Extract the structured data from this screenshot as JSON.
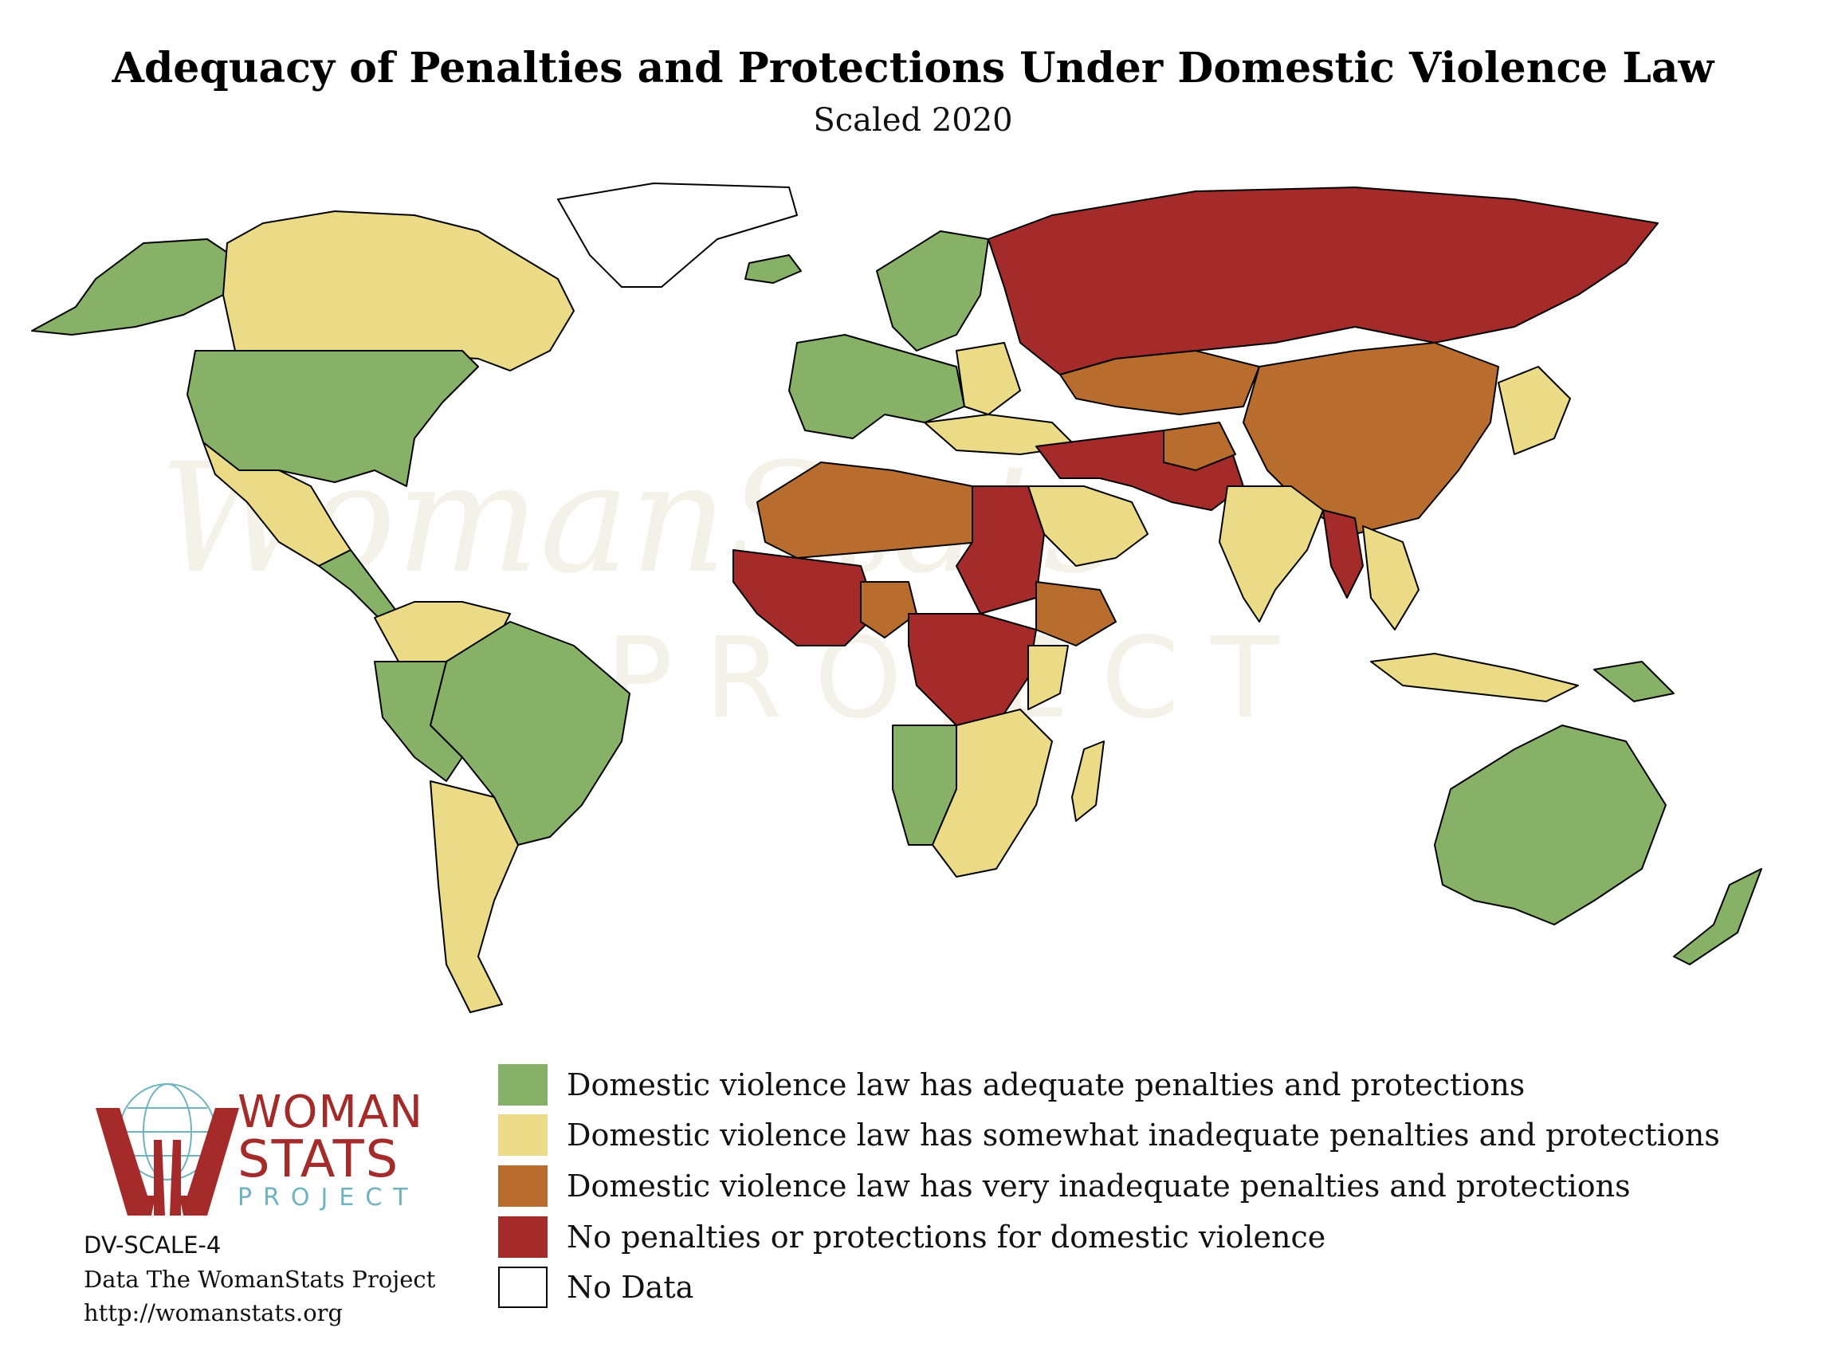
{
  "header": {
    "title": "Adequacy of Penalties and Protections Under Domestic Violence Law",
    "subtitle": "Scaled 2020"
  },
  "watermark": {
    "main": "WomanStats",
    "sub": "PROJECT"
  },
  "colors": {
    "adequate": "#88b168",
    "somewhat": "#ebdb86",
    "very": "#b86d2f",
    "none": "#a52a2a",
    "nodata": "#ffffff",
    "border": "#000000"
  },
  "legend": {
    "items": [
      {
        "label": "Domestic violence law has adequate penalties and protections",
        "color": "#88b168"
      },
      {
        "label": "Domestic violence law has somewhat inadequate penalties and protections",
        "color": "#ebdb86"
      },
      {
        "label": "Domestic violence law has very inadequate penalties and protections",
        "color": "#b86d2f"
      },
      {
        "label": "No penalties or protections for domestic violence",
        "color": "#a52a2a"
      },
      {
        "label": "No Data",
        "color": "#ffffff"
      }
    ]
  },
  "logo": {
    "line1": "WOMAN",
    "line2": "STATS",
    "line3": "PROJECT",
    "icon": "womanstats-hands-globe-icon"
  },
  "credits": {
    "code": "DV-SCALE-4",
    "data": "Data The WomanStats Project",
    "url": "http://womanstats.org"
  }
}
